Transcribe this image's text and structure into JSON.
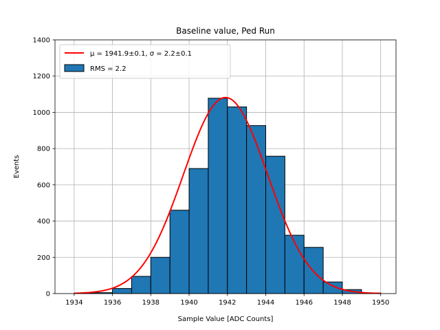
{
  "chart_data": {
    "type": "bar",
    "title": "Baseline value, Ped Run",
    "xlabel": "Sample Value [ADC Counts]",
    "ylabel": "Events",
    "xlim": [
      1933.0,
      1950.8
    ],
    "ylim": [
      0,
      1400
    ],
    "xticks": [
      1934,
      1936,
      1938,
      1940,
      1942,
      1944,
      1946,
      1948,
      1950
    ],
    "yticks": [
      0,
      200,
      400,
      600,
      800,
      1000,
      1200,
      1400
    ],
    "grid": true,
    "legend_position": "top-left",
    "bin_edges": [
      1934.0,
      1935.0,
      1936.0,
      1937.0,
      1938.0,
      1939.0,
      1940.0,
      1941.0,
      1942.0,
      1943.0,
      1944.0,
      1945.0,
      1946.0,
      1947.0,
      1948.0,
      1949.0,
      1950.0
    ],
    "counts": [
      2,
      5,
      28,
      95,
      200,
      460,
      690,
      1078,
      1030,
      927,
      758,
      322,
      255,
      64,
      22,
      3
    ],
    "series": [
      {
        "name": "$\\mu = 1941.9{\\pm}0.1$, $\\sigma = 2.2{\\pm}0.1$",
        "label_text": "μ = 1941.9±0.1, σ = 2.2±0.1",
        "type": "line",
        "color": "#ff0000",
        "fit": {
          "amplitude": 1082,
          "mean": 1941.9,
          "sigma": 2.2,
          "x_range": [
            1934,
            1950
          ]
        }
      },
      {
        "name": "RMS = 2.2",
        "type": "histogram",
        "color": "#1f77b4",
        "edgecolor": "#000000"
      }
    ]
  }
}
